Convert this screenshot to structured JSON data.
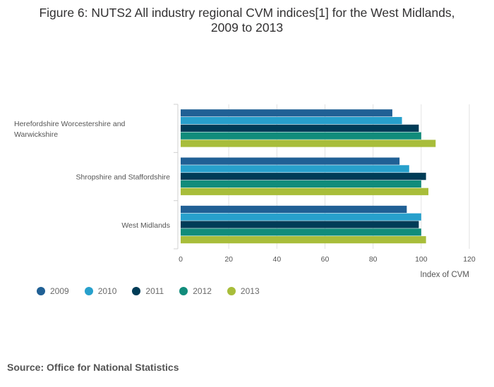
{
  "header": {
    "title_line1": "Figure 6: NUTS2 All industry regional CVM indices[1] for the West Midlands,",
    "title_line2": "2009 to 2013"
  },
  "chart_data": {
    "type": "bar",
    "orientation": "horizontal",
    "title": "Figure 6: NUTS2 All industry regional CVM indices[1] for the West Midlands, 2009 to 2013",
    "categories": [
      [
        "Herefordshire Worcestershire and",
        "Warwickshire"
      ],
      [
        "Shropshire and Staffordshire"
      ],
      [
        "West Midlands"
      ]
    ],
    "series": [
      {
        "name": "2009",
        "color": "#206095",
        "values": [
          88,
          91,
          94
        ]
      },
      {
        "name": "2010",
        "color": "#27a0cc",
        "values": [
          92,
          95,
          100
        ]
      },
      {
        "name": "2011",
        "color": "#003c57",
        "values": [
          99,
          102,
          99
        ]
      },
      {
        "name": "2012",
        "color": "#118c7b",
        "values": [
          100,
          100,
          100
        ]
      },
      {
        "name": "2013",
        "color": "#a8bd3a",
        "values": [
          106,
          103,
          102
        ]
      }
    ],
    "xlim": [
      0,
      120
    ],
    "xticks": [
      0,
      20,
      40,
      60,
      80,
      100,
      120
    ],
    "xlabel": "Index of CVM",
    "ylabel": "",
    "grid": true,
    "legend": "bottom-left"
  },
  "footer": {
    "source": "Source: Office for National Statistics"
  }
}
